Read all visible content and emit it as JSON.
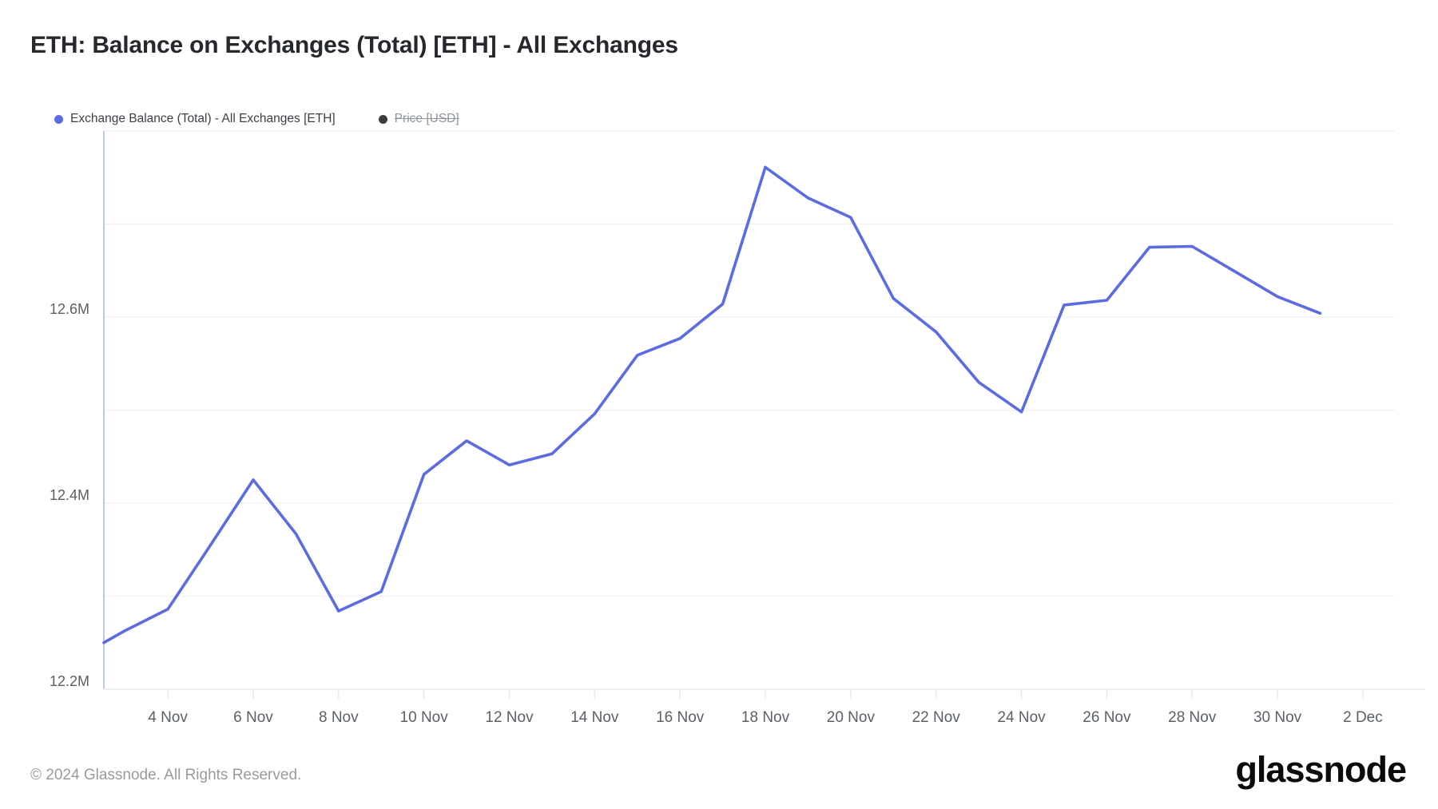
{
  "header": {
    "title": "ETH: Balance on Exchanges (Total) [ETH] - All Exchanges"
  },
  "legend": {
    "items": [
      {
        "label": "Exchange Balance (Total) - All Exchanges [ETH]",
        "color": "#5b6ce1",
        "enabled": true
      },
      {
        "label": "Price [USD]",
        "color": "#3a3d42",
        "enabled": false
      }
    ]
  },
  "colors": {
    "line": "#5b6ce1",
    "gridline": "#f2f2f2",
    "y_axis_line": "#bdc8f2",
    "x_axis_line": "#e9e9e9",
    "tick_label": "#5a6066",
    "title_text": "#25282d",
    "footer_text": "#9a9a9a",
    "background": "#ffffff"
  },
  "chart_data": {
    "type": "line",
    "title": "ETH: Balance on Exchanges (Total) [ETH] - All Exchanges",
    "ylabel": "",
    "xlabel": "",
    "unit_suffix": "M",
    "ylim": [
      12.2,
      12.8
    ],
    "xlim_days": [
      2.5,
      32.75
    ],
    "day_scale_note": "day index: 1 = 1 Nov ... 32 = 2 Dec; first point clipped at left plot edge",
    "grid": "horizontal-only",
    "legend_position": "top-left",
    "gridline_values": [
      12.3,
      12.4,
      12.5,
      12.6,
      12.7,
      12.8
    ],
    "yticks": [
      {
        "value": 12.2,
        "label": "12.2M"
      },
      {
        "value": 12.4,
        "label": "12.4M"
      },
      {
        "value": 12.6,
        "label": "12.6M"
      }
    ],
    "xticks": [
      {
        "day": 4,
        "label": "4 Nov"
      },
      {
        "day": 6,
        "label": "6 Nov"
      },
      {
        "day": 8,
        "label": "8 Nov"
      },
      {
        "day": 10,
        "label": "10 Nov"
      },
      {
        "day": 12,
        "label": "12 Nov"
      },
      {
        "day": 14,
        "label": "14 Nov"
      },
      {
        "day": 16,
        "label": "16 Nov"
      },
      {
        "day": 18,
        "label": "18 Nov"
      },
      {
        "day": 20,
        "label": "20 Nov"
      },
      {
        "day": 22,
        "label": "22 Nov"
      },
      {
        "day": 24,
        "label": "24 Nov"
      },
      {
        "day": 26,
        "label": "26 Nov"
      },
      {
        "day": 28,
        "label": "28 Nov"
      },
      {
        "day": 30,
        "label": "30 Nov"
      },
      {
        "day": 32,
        "label": "2 Dec"
      }
    ],
    "series": [
      {
        "name": "Exchange Balance (Total) - All Exchanges [ETH]",
        "color": "#5b6ce1",
        "visible": true,
        "points": [
          {
            "date": "2 Nov",
            "day": 2.5,
            "value": 12.25
          },
          {
            "date": "3 Nov",
            "day": 3,
            "value": 12.263
          },
          {
            "date": "4 Nov",
            "day": 4,
            "value": 12.286
          },
          {
            "date": "5 Nov",
            "day": 5,
            "value": 12.355
          },
          {
            "date": "6 Nov",
            "day": 6,
            "value": 12.425
          },
          {
            "date": "7 Nov",
            "day": 7,
            "value": 12.367
          },
          {
            "date": "8 Nov",
            "day": 8,
            "value": 12.284
          },
          {
            "date": "9 Nov",
            "day": 9,
            "value": 12.305
          },
          {
            "date": "10 Nov",
            "day": 10,
            "value": 12.431
          },
          {
            "date": "11 Nov",
            "day": 11,
            "value": 12.467
          },
          {
            "date": "12 Nov",
            "day": 12,
            "value": 12.441
          },
          {
            "date": "13 Nov",
            "day": 13,
            "value": 12.453
          },
          {
            "date": "14 Nov",
            "day": 14,
            "value": 12.496
          },
          {
            "date": "15 Nov",
            "day": 15,
            "value": 12.559
          },
          {
            "date": "16 Nov",
            "day": 16,
            "value": 12.577
          },
          {
            "date": "17 Nov",
            "day": 17,
            "value": 12.614
          },
          {
            "date": "18 Nov",
            "day": 18,
            "value": 12.761
          },
          {
            "date": "19 Nov",
            "day": 19,
            "value": 12.728
          },
          {
            "date": "20 Nov",
            "day": 20,
            "value": 12.707
          },
          {
            "date": "21 Nov",
            "day": 21,
            "value": 12.62
          },
          {
            "date": "22 Nov",
            "day": 22,
            "value": 12.584
          },
          {
            "date": "23 Nov",
            "day": 23,
            "value": 12.53
          },
          {
            "date": "24 Nov",
            "day": 24,
            "value": 12.498
          },
          {
            "date": "25 Nov",
            "day": 25,
            "value": 12.613
          },
          {
            "date": "26 Nov",
            "day": 26,
            "value": 12.618
          },
          {
            "date": "27 Nov",
            "day": 27,
            "value": 12.675
          },
          {
            "date": "28 Nov",
            "day": 28,
            "value": 12.676
          },
          {
            "date": "29 Nov",
            "day": 29,
            "value": 12.649
          },
          {
            "date": "30 Nov",
            "day": 30,
            "value": 12.622
          },
          {
            "date": "1 Dec",
            "day": 31,
            "value": 12.604
          }
        ]
      },
      {
        "name": "Price [USD]",
        "color": "#3a3d42",
        "visible": false,
        "points": []
      }
    ]
  },
  "footer": {
    "copyright": "© 2024 Glassnode. All Rights Reserved.",
    "brand": "glassnode"
  }
}
